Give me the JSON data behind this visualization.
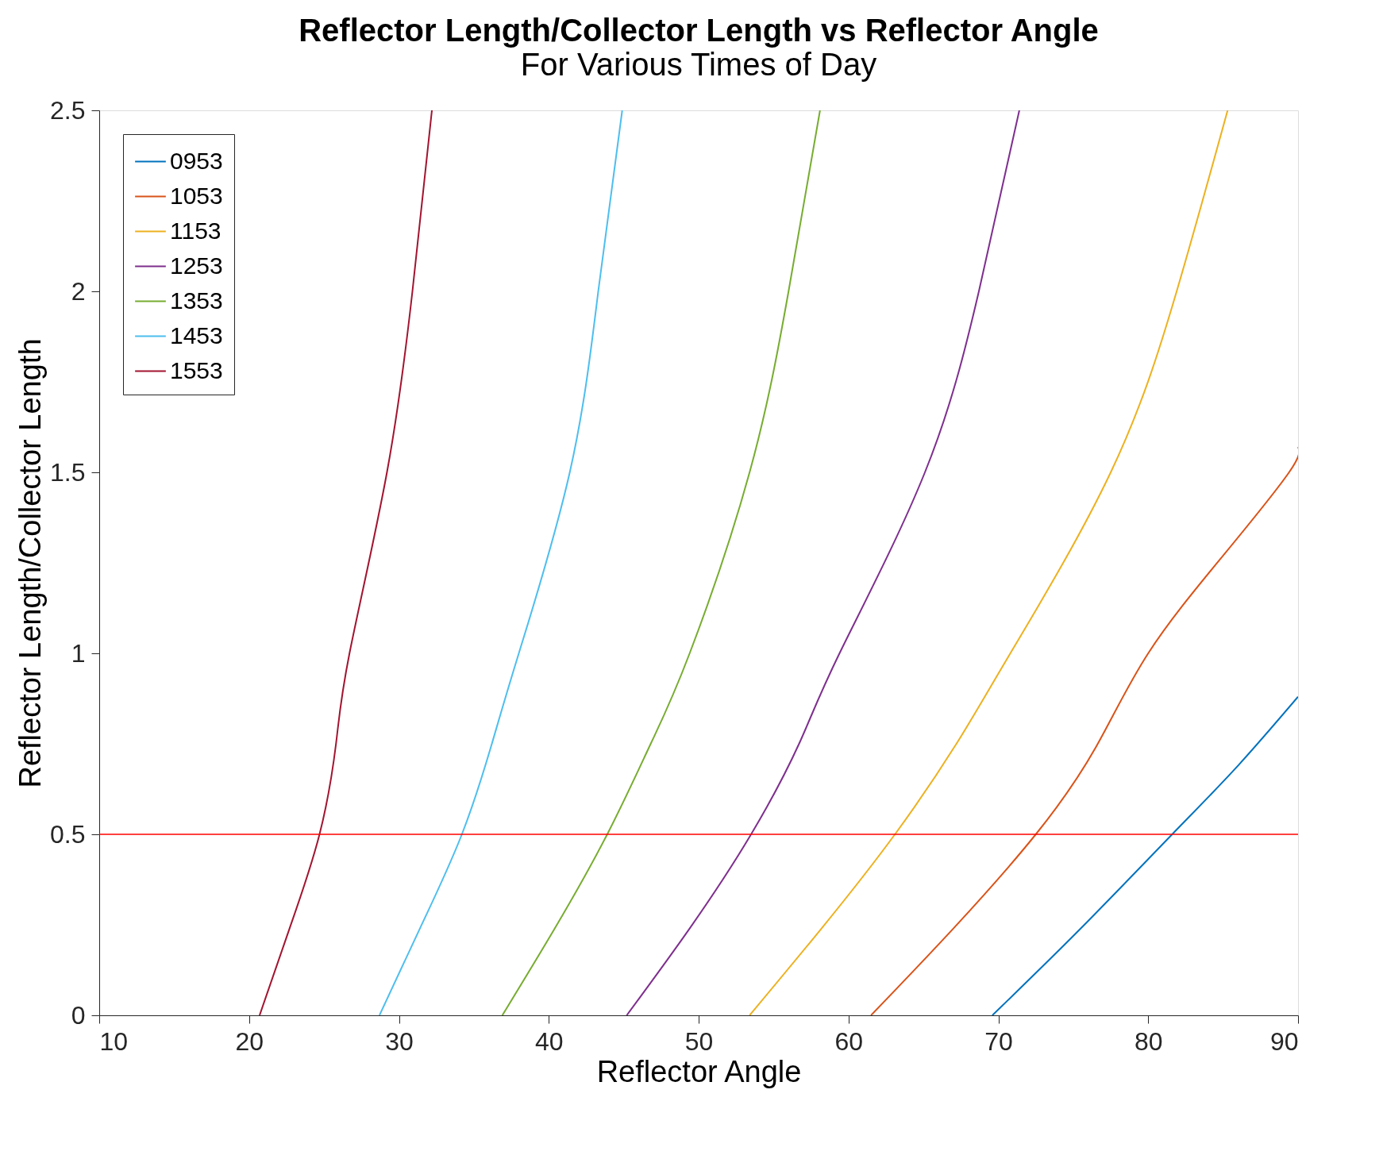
{
  "chart_data": {
    "type": "line",
    "title": "Reflector Length/Collector Length vs Reflector Angle",
    "subtitle": "For Various Times of Day",
    "xlabel": "Reflector Angle",
    "ylabel": "Reflector Length/Collector Length",
    "xlim": [
      10,
      90
    ],
    "ylim": [
      0,
      2.5
    ],
    "xticks": [
      10,
      20,
      30,
      40,
      50,
      60,
      70,
      80,
      90
    ],
    "yticks": [
      0,
      0.5,
      1,
      1.5,
      2,
      2.5
    ],
    "grid": false,
    "legend": "top left",
    "marker": "none",
    "line_style": "solid",
    "series": [
      {
        "name": "0953",
        "color": "#0072bd",
        "x": [
          69.6,
          75.5,
          81.6,
          86.0,
          90
        ],
        "values": [
          0,
          0.24,
          0.5,
          0.69,
          0.88
        ]
      },
      {
        "name": "1053",
        "color": "#d95319",
        "x": [
          61.5,
          67.0,
          72.5,
          76.5,
          80,
          85.0,
          89.4,
          90
        ],
        "values": [
          0,
          0.24,
          0.5,
          0.74,
          1.0,
          1.27,
          1.5,
          1.57
        ]
      },
      {
        "name": "1153",
        "color": "#edb120",
        "x": [
          53.4,
          58.2,
          63.1,
          67.2,
          70.8,
          77.5,
          81.9,
          85.3
        ],
        "values": [
          0,
          0.24,
          0.5,
          0.75,
          1.0,
          1.5,
          2.0,
          2.5
        ]
      },
      {
        "name": "1253",
        "color": "#7e2f8e",
        "x": [
          45.2,
          49.4,
          53.5,
          56.7,
          59.4,
          65.1,
          68.7,
          71.4
        ],
        "values": [
          0,
          0.24,
          0.5,
          0.75,
          1.0,
          1.5,
          2.0,
          2.5
        ]
      },
      {
        "name": "1353",
        "color": "#77ac30",
        "x": [
          36.9,
          40.4,
          43.9,
          46.8,
          49.4,
          53.4,
          56.0,
          58.1
        ],
        "values": [
          0,
          0.24,
          0.5,
          0.75,
          1.0,
          1.5,
          2.0,
          2.5
        ]
      },
      {
        "name": "1453",
        "color": "#4dbeee",
        "x": [
          28.7,
          31.4,
          34.2,
          36.2,
          38.0,
          41.4,
          43.3,
          44.9
        ],
        "values": [
          0,
          0.24,
          0.5,
          0.75,
          1.0,
          1.5,
          2.0,
          2.5
        ]
      },
      {
        "name": "1553",
        "color": "#a2142f",
        "x": [
          20.7,
          22.7,
          24.7,
          25.8,
          26.7,
          29.2,
          30.9,
          32.2
        ],
        "values": [
          0,
          0.24,
          0.5,
          0.75,
          1.0,
          1.5,
          2.0,
          2.5
        ]
      }
    ],
    "ref_lines": [
      {
        "axis": "y",
        "value": 0.5,
        "color": "#ff0000"
      }
    ]
  }
}
